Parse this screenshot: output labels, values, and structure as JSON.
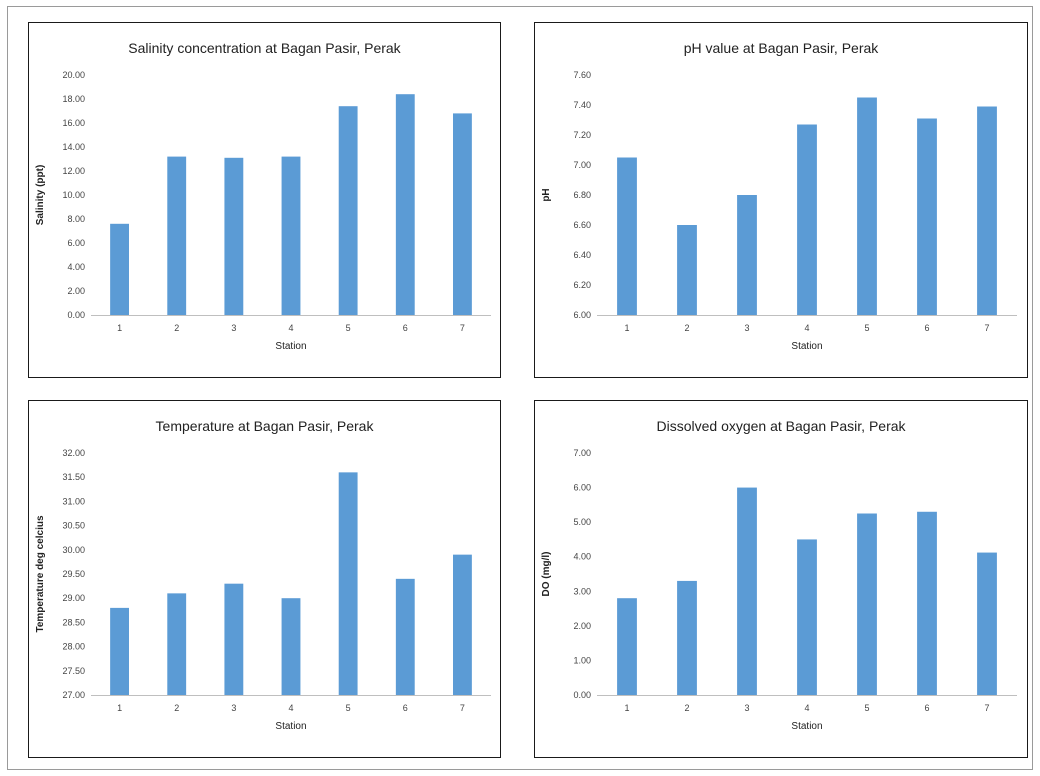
{
  "chart_data": [
    {
      "type": "bar",
      "title": "Salinity concentration at Bagan Pasir, Perak",
      "xlabel": "Station",
      "ylabel": "Salinity (ppt)",
      "categories": [
        "1",
        "2",
        "3",
        "4",
        "5",
        "6",
        "7"
      ],
      "values": [
        7.6,
        13.2,
        13.1,
        13.2,
        17.4,
        18.4,
        16.8
      ],
      "ylim": [
        0,
        20
      ],
      "ystep": 2,
      "ytick_decimals": 2,
      "bar_color": "#5b9bd5",
      "grid": false
    },
    {
      "type": "bar",
      "title": "pH value at Bagan Pasir, Perak",
      "xlabel": "Station",
      "ylabel": "pH",
      "categories": [
        "1",
        "2",
        "3",
        "4",
        "5",
        "6",
        "7"
      ],
      "values": [
        7.05,
        6.6,
        6.8,
        7.27,
        7.45,
        7.31,
        7.39
      ],
      "ylim": [
        6.0,
        7.6
      ],
      "ystep": 0.2,
      "ytick_decimals": 2,
      "bar_color": "#5b9bd5",
      "grid": false
    },
    {
      "type": "bar",
      "title": "Temperature  at Bagan Pasir, Perak",
      "xlabel": "Station",
      "ylabel": "Temperature deg celcius",
      "categories": [
        "1",
        "2",
        "3",
        "4",
        "5",
        "6",
        "7"
      ],
      "values": [
        28.8,
        29.1,
        29.3,
        29.0,
        31.6,
        29.4,
        29.9
      ],
      "ylim": [
        27.0,
        32.0
      ],
      "ystep": 0.5,
      "ytick_decimals": 2,
      "bar_color": "#5b9bd5",
      "grid": false
    },
    {
      "type": "bar",
      "title": "Dissolved oxygen at Bagan Pasir, Perak",
      "xlabel": "Station",
      "ylabel": "DO (mg/l)",
      "categories": [
        "1",
        "2",
        "3",
        "4",
        "5",
        "6",
        "7"
      ],
      "values": [
        2.8,
        3.3,
        6.0,
        4.5,
        5.25,
        5.3,
        4.12
      ],
      "ylim": [
        0,
        7
      ],
      "ystep": 1,
      "ytick_decimals": 2,
      "bar_color": "#5b9bd5",
      "grid": false
    }
  ]
}
